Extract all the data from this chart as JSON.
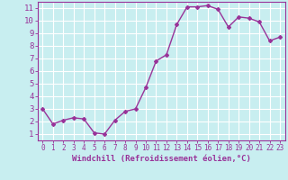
{
  "x": [
    0,
    1,
    2,
    3,
    4,
    5,
    6,
    7,
    8,
    9,
    10,
    11,
    12,
    13,
    14,
    15,
    16,
    17,
    18,
    19,
    20,
    21,
    22,
    23
  ],
  "y": [
    3.0,
    1.8,
    2.1,
    2.3,
    2.2,
    1.1,
    1.0,
    2.1,
    2.8,
    3.0,
    4.7,
    6.8,
    7.3,
    9.7,
    11.1,
    11.1,
    11.2,
    10.9,
    9.5,
    10.3,
    10.2,
    9.9,
    8.4,
    8.7
  ],
  "line_color": "#993399",
  "marker": "D",
  "marker_size": 2,
  "linewidth": 1.0,
  "bg_color": "#c8eef0",
  "grid_color": "#ffffff",
  "xlabel": "Windchill (Refroidissement éolien,°C)",
  "xlim": [
    -0.5,
    23.5
  ],
  "ylim": [
    0.5,
    11.5
  ],
  "yticks": [
    1,
    2,
    3,
    4,
    5,
    6,
    7,
    8,
    9,
    10,
    11
  ],
  "xticks": [
    0,
    1,
    2,
    3,
    4,
    5,
    6,
    7,
    8,
    9,
    10,
    11,
    12,
    13,
    14,
    15,
    16,
    17,
    18,
    19,
    20,
    21,
    22,
    23
  ],
  "tick_color": "#993399",
  "label_color": "#993399",
  "axis_color": "#993399",
  "xlabel_fontsize": 6.5,
  "ytick_fontsize": 6.5,
  "xtick_fontsize": 5.5
}
